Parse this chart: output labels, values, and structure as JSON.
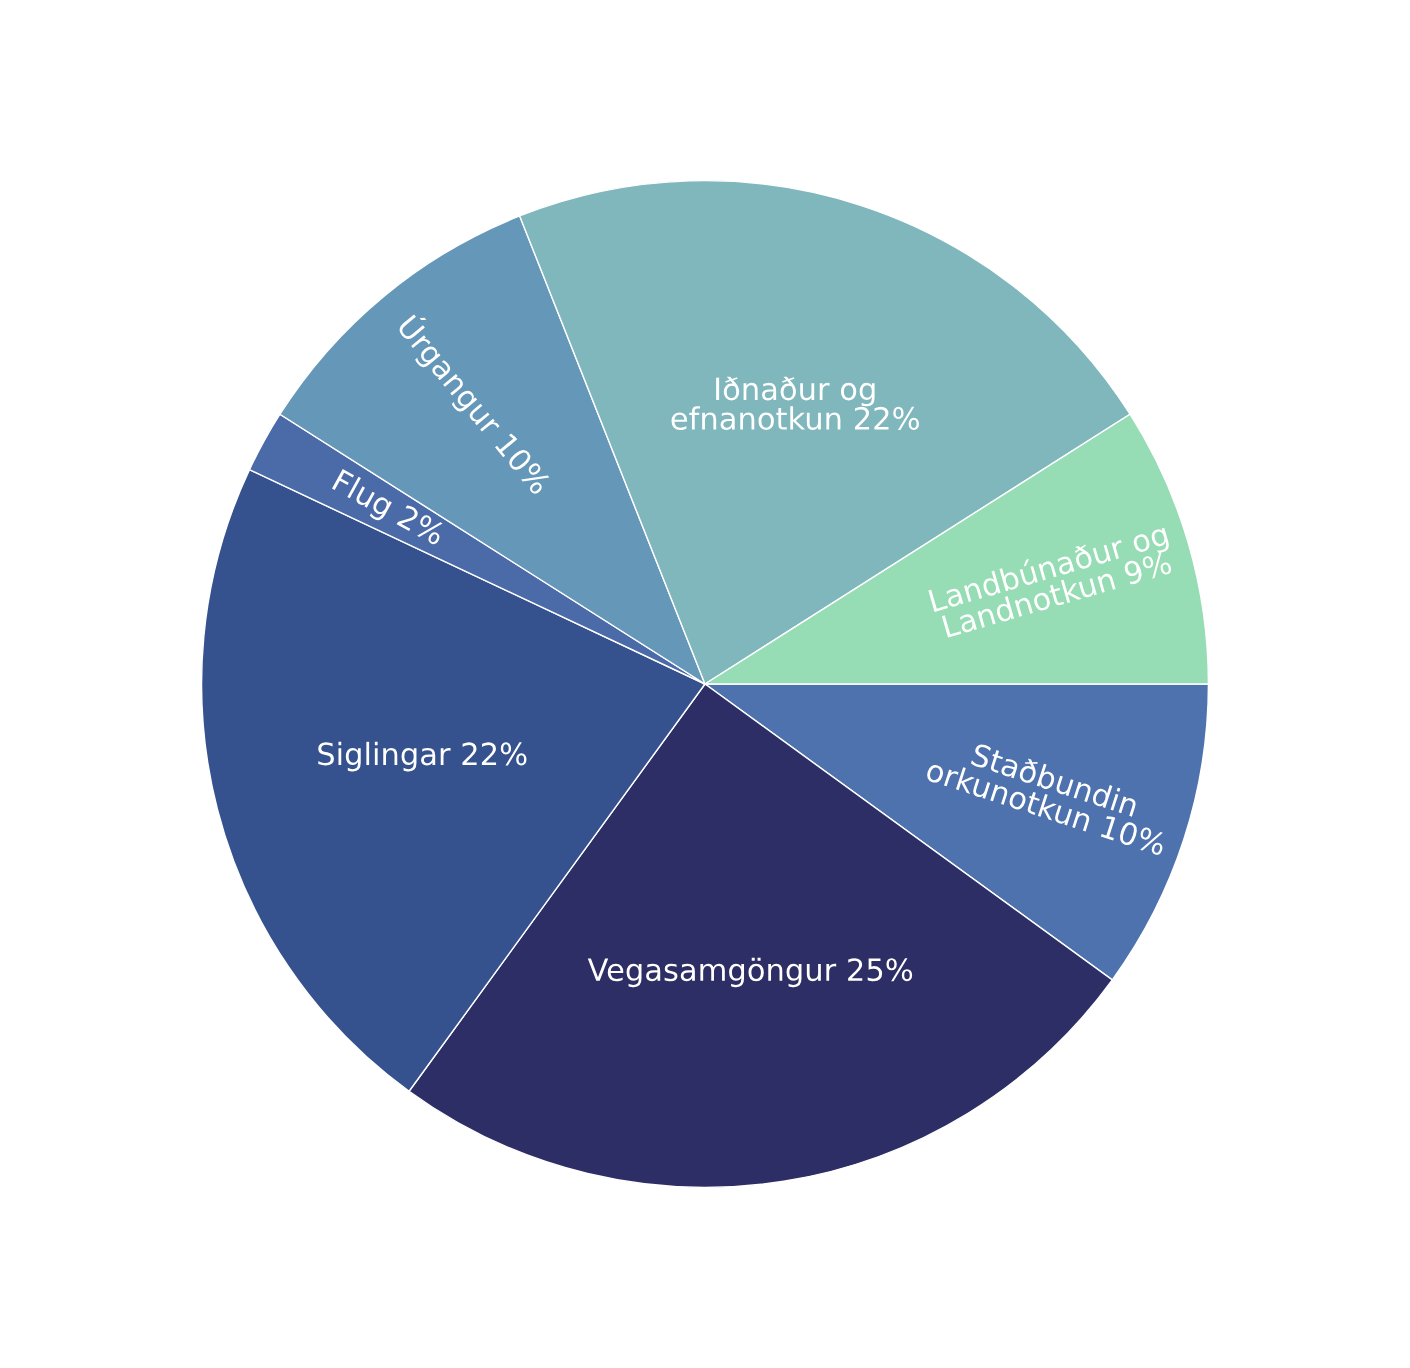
{
  "chart_data": {
    "type": "pie",
    "categories": [
      "Staðbundin\norkunotkun",
      "Vegasamgöngur",
      "Siglingar",
      "Flug",
      "Úrgangur",
      "Iðnaður og\nefnanotkun",
      "Landbúnaður og\nLandnotkun"
    ],
    "values": [
      10,
      25,
      22,
      2,
      10,
      22,
      9
    ],
    "value_labels": [
      "10%",
      "25%",
      "22%",
      "2%",
      "10%",
      "22%",
      "9%"
    ],
    "colors": [
      "#4e72ad",
      "#2e2e66",
      "#36528e",
      "#4b6aa8",
      "#6597b9",
      "#7fb7bd",
      "#96dcb4"
    ],
    "legend": false
  }
}
